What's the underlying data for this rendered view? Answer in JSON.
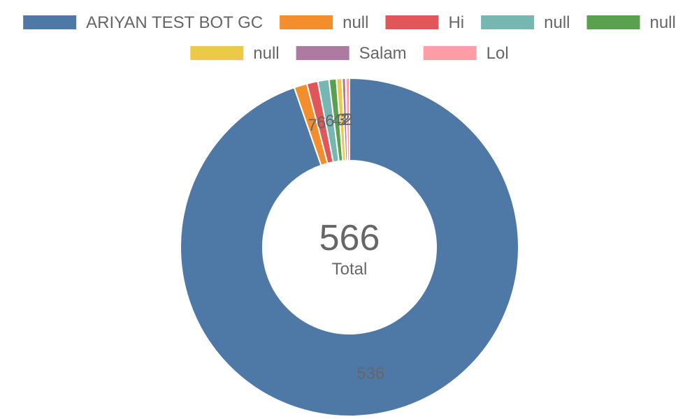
{
  "chart_data": {
    "type": "doughnut",
    "labels": [
      "ARIYAN TEST BOT GC",
      "null",
      "Hi",
      "null",
      "null",
      "null",
      "Salam",
      "Lol"
    ],
    "values": [
      536,
      7,
      6,
      6,
      4,
      3,
      2,
      2
    ],
    "colors": [
      "#4e79a7",
      "#f28e2c",
      "#e15759",
      "#76b7b2",
      "#59a14f",
      "#edc949",
      "#af7aa1",
      "#ff9da7"
    ],
    "center_value": "566",
    "center_caption": "Total",
    "legend_position": "top",
    "slice_border_color": "#ffffff"
  }
}
